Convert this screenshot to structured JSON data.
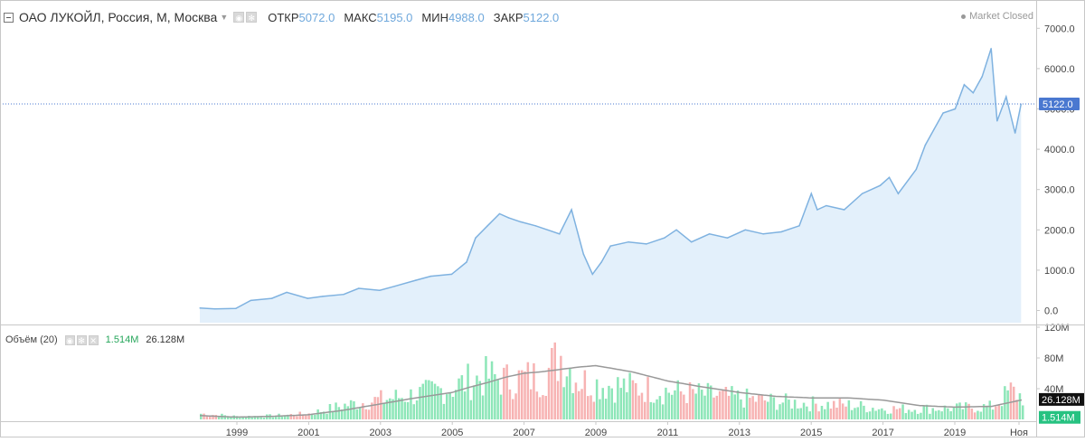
{
  "header": {
    "symbol": "ОАО ЛУКОЙЛ, Россия, М, Москва",
    "open_label": "ОТКР",
    "open_value": "5072.0",
    "high_label": "МАКС",
    "high_value": "5195.0",
    "low_label": "МИН",
    "low_value": "4988.0",
    "close_label": "ЗАКР",
    "close_value": "5122.0",
    "market_status": "Market Closed"
  },
  "volume_panel": {
    "title": "Объём (20)",
    "last_volume": "1.514M",
    "ma_value": "26.128M"
  },
  "colors": {
    "price_line": "#7fb2e0",
    "price_fill": "#e3f0fb",
    "volume_up": "#8de6b8",
    "volume_down": "#f7b3b3",
    "volume_ma": "#999999",
    "last_price_badge": "#4a78d0"
  },
  "chart_data": [
    {
      "type": "area",
      "x": [
        "1998-01",
        "1998-06",
        "1999-01",
        "1999-06",
        "2000-01",
        "2000-06",
        "2001-01",
        "2001-06",
        "2002-01",
        "2002-06",
        "2003-01",
        "2003-06",
        "2004-01",
        "2004-06",
        "2005-01",
        "2005-06",
        "2005-09",
        "2006-01",
        "2006-05",
        "2006-08",
        "2006-12",
        "2007-05",
        "2007-09",
        "2008-01",
        "2008-05",
        "2008-09",
        "2008-12",
        "2009-03",
        "2009-06",
        "2009-12",
        "2010-06",
        "2010-12",
        "2011-04",
        "2011-09",
        "2012-03",
        "2012-09",
        "2013-03",
        "2013-09",
        "2014-03",
        "2014-09",
        "2015-01",
        "2015-03",
        "2015-06",
        "2015-12",
        "2016-06",
        "2016-12",
        "2017-03",
        "2017-06",
        "2017-12",
        "2018-03",
        "2018-06",
        "2018-09",
        "2019-01",
        "2019-04",
        "2019-07",
        "2019-10",
        "2020-01",
        "2020-03",
        "2020-06",
        "2020-09",
        "2020-11"
      ],
      "y": [
        60,
        40,
        50,
        250,
        300,
        450,
        300,
        350,
        400,
        550,
        500,
        600,
        750,
        850,
        900,
        1200,
        1800,
        2100,
        2400,
        2300,
        2200,
        2100,
        2000,
        1900,
        2500,
        1400,
        900,
        1200,
        1600,
        1700,
        1650,
        1800,
        2000,
        1700,
        1900,
        1800,
        2000,
        1900,
        1950,
        2100,
        2900,
        2500,
        2600,
        2500,
        2900,
        3100,
        3300,
        2900,
        3500,
        4100,
        4500,
        4900,
        5000,
        5600,
        5400,
        5800,
        6500,
        4700,
        5300,
        4400,
        5122
      ],
      "ylim": [
        0,
        7000
      ],
      "y_ticks": [
        "0.0",
        "1000.0",
        "2000.0",
        "3000.0",
        "4000.0",
        "5000.0",
        "6000.0",
        "7000.0"
      ],
      "last_price_label": "5122.0"
    },
    {
      "type": "bar",
      "x_tick_labels": [
        "1999",
        "2001",
        "2003",
        "2005",
        "2007",
        "2009",
        "2011",
        "2013",
        "2015",
        "2017",
        "2019",
        "Ноя"
      ],
      "ylim": [
        0,
        120
      ],
      "y_ticks": [
        "40M",
        "80M",
        "120M"
      ],
      "volume_profile_x": [
        1998,
        1999,
        2000,
        2001,
        2002,
        2003,
        2004,
        2005,
        2005.5,
        2006,
        2006.5,
        2007,
        2007.5,
        2008,
        2008.5,
        2009,
        2010,
        2011,
        2012,
        2013,
        2014,
        2015,
        2016,
        2017,
        2018,
        2019,
        2020,
        2020.5,
        2020.9
      ],
      "volume_profile_y": [
        8,
        4,
        5,
        8,
        20,
        28,
        35,
        45,
        55,
        60,
        55,
        58,
        60,
        90,
        55,
        50,
        45,
        40,
        35,
        30,
        25,
        22,
        20,
        15,
        15,
        16,
        18,
        40,
        30
      ],
      "ma_profile_y": [
        5,
        3,
        4,
        6,
        12,
        20,
        28,
        35,
        42,
        48,
        55,
        60,
        62,
        65,
        68,
        70,
        62,
        50,
        42,
        35,
        30,
        28,
        28,
        25,
        18,
        16,
        17,
        22,
        26
      ]
    }
  ]
}
